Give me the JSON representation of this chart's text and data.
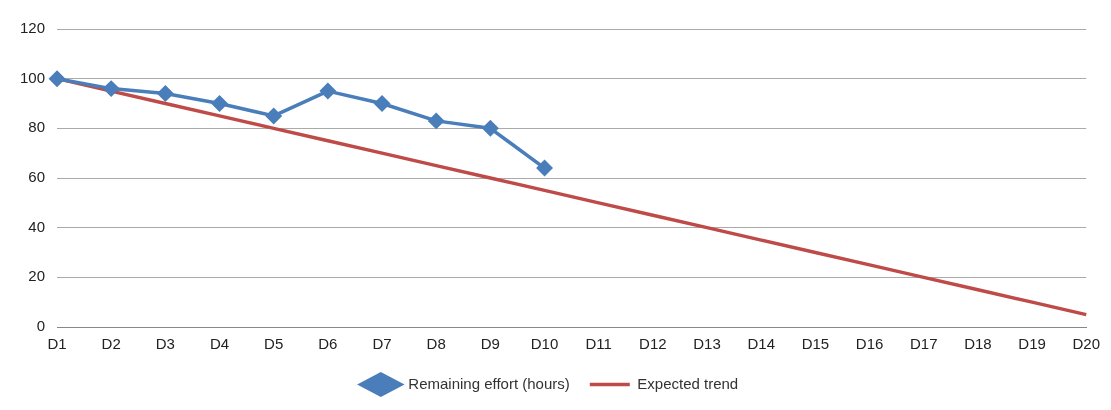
{
  "chart_data": {
    "type": "line",
    "categories": [
      "D1",
      "D2",
      "D3",
      "D4",
      "D5",
      "D6",
      "D7",
      "D8",
      "D9",
      "D10",
      "D11",
      "D12",
      "D13",
      "D14",
      "D15",
      "D16",
      "D17",
      "D18",
      "D19",
      "D20"
    ],
    "series": [
      {
        "name": "Remaining effort (hours)",
        "color": "#4a7ebb",
        "marker": "diamond",
        "values": [
          100,
          96,
          94,
          90,
          85,
          95,
          90,
          83,
          80,
          64,
          null,
          null,
          null,
          null,
          null,
          null,
          null,
          null,
          null,
          null
        ]
      },
      {
        "name": "Expected trend",
        "color": "#be4b48",
        "marker": "none",
        "values": [
          100,
          95,
          90,
          85,
          80,
          75,
          70,
          65,
          60,
          55,
          50,
          45,
          40,
          35,
          30,
          25,
          20,
          15,
          10,
          5
        ]
      }
    ],
    "ylim": [
      0,
      120
    ],
    "yticks": [
      0,
      20,
      40,
      60,
      80,
      100,
      120
    ],
    "grid": "y",
    "legend": "bottom"
  }
}
